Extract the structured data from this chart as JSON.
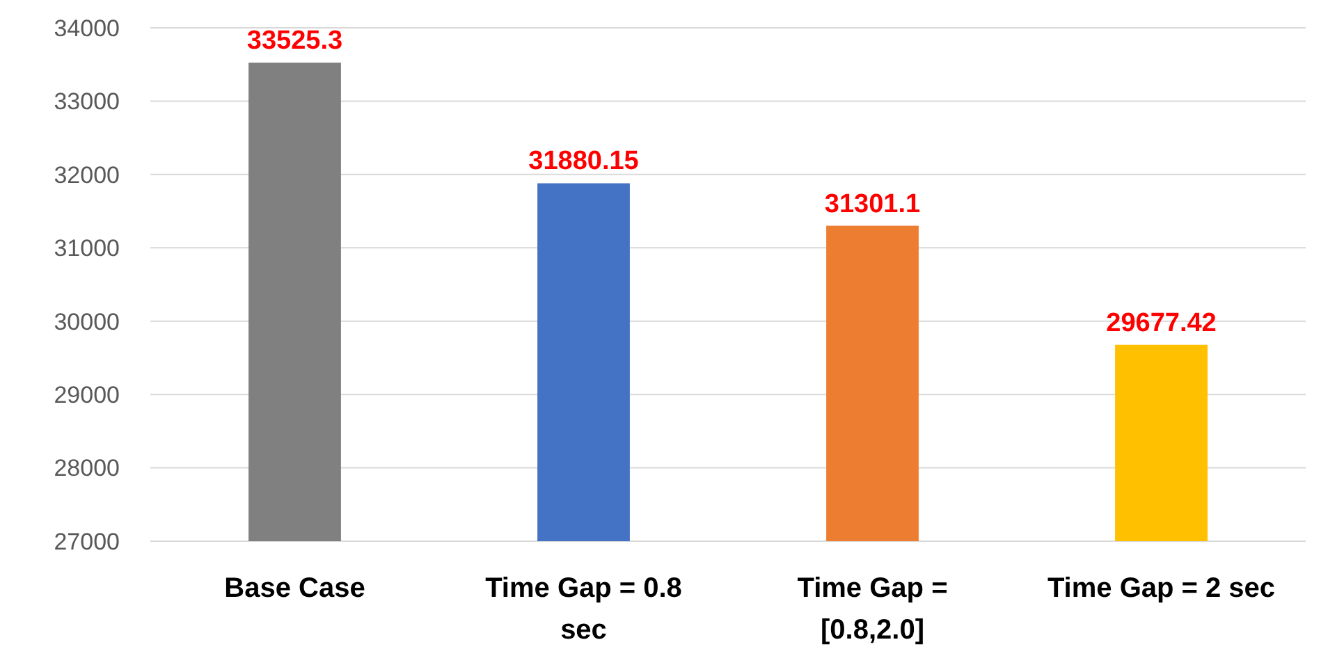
{
  "chart_data": {
    "type": "bar",
    "categories": [
      "Base Case",
      "Time Gap = 0.8 sec",
      "Time Gap = [0.8,2.0]",
      "Time Gap = 2 sec"
    ],
    "values": [
      33525.3,
      31880.15,
      31301.1,
      29677.42
    ],
    "colors": [
      "#808080",
      "#4472c4",
      "#ed7d31",
      "#ffc000"
    ],
    "ylim": [
      27000,
      34000
    ],
    "yticks": [
      27000,
      28000,
      29000,
      30000,
      31000,
      32000,
      33000,
      34000
    ],
    "grid": "y",
    "data_labels": true
  }
}
